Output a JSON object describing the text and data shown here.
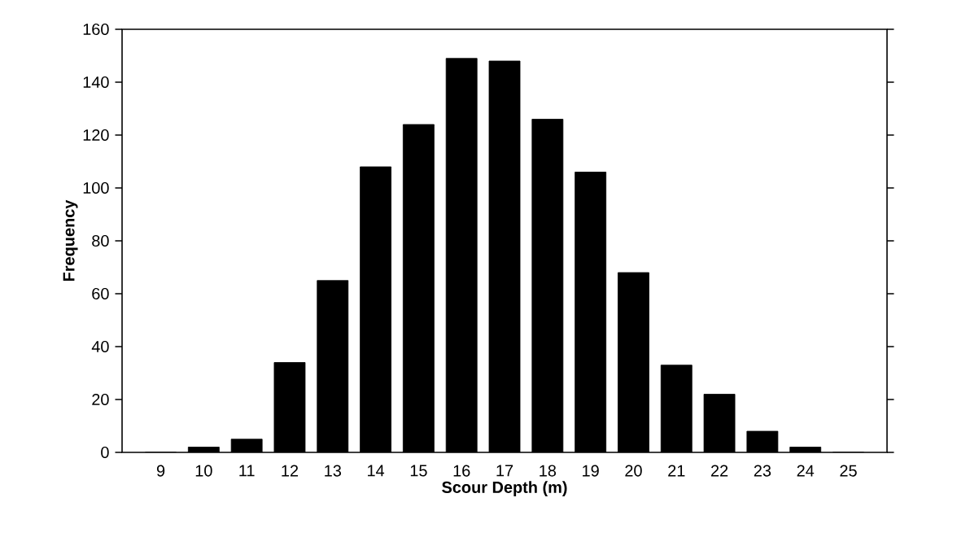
{
  "chart_data": {
    "type": "bar",
    "xlabel": "Scour Depth (m)",
    "ylabel": "Frequency",
    "categories": [
      "9",
      "10",
      "11",
      "12",
      "13",
      "14",
      "15",
      "16",
      "17",
      "18",
      "19",
      "20",
      "21",
      "22",
      "23",
      "24",
      "25"
    ],
    "values": [
      0,
      2,
      5,
      34,
      65,
      108,
      124,
      149,
      148,
      126,
      106,
      68,
      33,
      22,
      8,
      2,
      0
    ],
    "color": "#000000",
    "ylim": [
      0,
      160
    ],
    "yticks": [
      0,
      20,
      40,
      60,
      80,
      100,
      120,
      140,
      160
    ],
    "grid": false
  }
}
